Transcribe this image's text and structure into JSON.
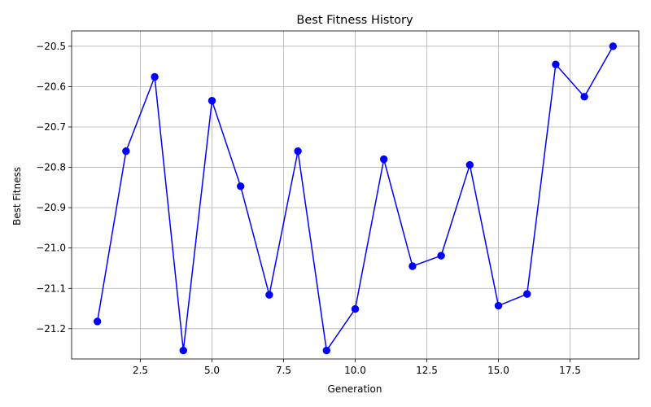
{
  "chart_data": {
    "type": "line",
    "title": "Best Fitness History",
    "xlabel": "Generation",
    "ylabel": "Best Fitness",
    "xlim": [
      0.1,
      19.9
    ],
    "ylim": [
      -21.275,
      -20.462
    ],
    "grid": true,
    "x_ticks": [
      2.5,
      5.0,
      7.5,
      10.0,
      12.5,
      15.0,
      17.5
    ],
    "x_tick_labels": [
      "2.5",
      "5.0",
      "7.5",
      "10.0",
      "12.5",
      "15.0",
      "17.5"
    ],
    "y_ticks": [
      -21.2,
      -21.1,
      -21.0,
      -20.9,
      -20.8,
      -20.7,
      -20.6,
      -20.5
    ],
    "y_tick_labels": [
      "−21.2",
      "−21.1",
      "−21.0",
      "−20.9",
      "−20.8",
      "−20.7",
      "−20.6",
      "−20.5"
    ],
    "series": [
      {
        "color": "#0000ff",
        "marker": "circle",
        "x": [
          1,
          2,
          3,
          4,
          5,
          6,
          7,
          8,
          9,
          10,
          11,
          12,
          13,
          14,
          15,
          16,
          17,
          18,
          19
        ],
        "y": [
          -21.182,
          -20.76,
          -20.576,
          -21.254,
          -20.635,
          -20.847,
          -21.116,
          -20.76,
          -21.254,
          -21.151,
          -20.78,
          -21.045,
          -21.019,
          -20.794,
          -21.143,
          -21.114,
          -20.545,
          -20.625,
          -20.5
        ]
      }
    ]
  }
}
